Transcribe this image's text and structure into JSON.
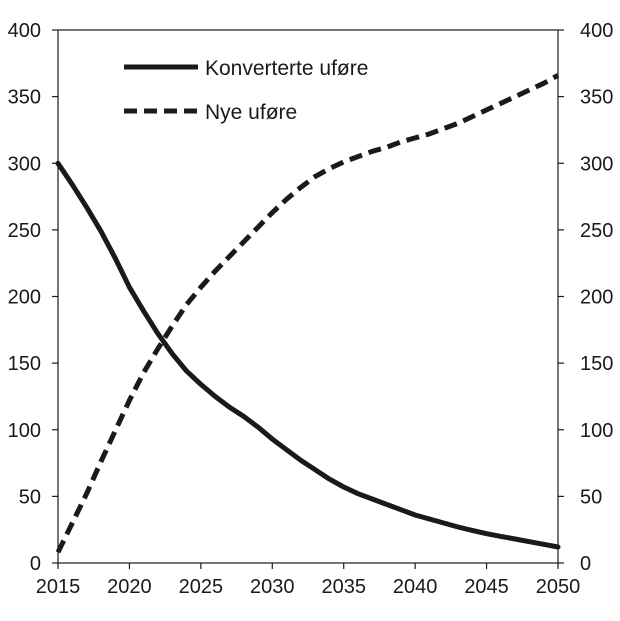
{
  "chart_data": {
    "type": "line",
    "title": "",
    "xlabel": "",
    "ylabel": "",
    "xlim": [
      2015,
      2050
    ],
    "ylim": [
      0,
      400
    ],
    "x_ticks": [
      "2015",
      "2020",
      "2025",
      "2030",
      "2035",
      "2040",
      "2045",
      "2050"
    ],
    "y_ticks_left": [
      "0",
      "50",
      "100",
      "150",
      "200",
      "250",
      "300",
      "350",
      "400"
    ],
    "y_ticks_right": [
      "0",
      "50",
      "100",
      "150",
      "200",
      "250",
      "300",
      "350",
      "400"
    ],
    "grid": false,
    "legend_position": "top-left",
    "series": [
      {
        "name": "Konverterte uføre",
        "style": "solid",
        "color": "#1a1a1a",
        "x": [
          2015,
          2016,
          2017,
          2018,
          2019,
          2020,
          2021,
          2022,
          2023,
          2024,
          2025,
          2026,
          2027,
          2028,
          2029,
          2030,
          2031,
          2032,
          2033,
          2034,
          2035,
          2036,
          2037,
          2038,
          2039,
          2040,
          2041,
          2042,
          2043,
          2044,
          2045,
          2046,
          2047,
          2048,
          2049,
          2050
        ],
        "y": [
          300,
          284,
          267,
          249,
          229,
          207,
          189,
          172,
          157,
          144,
          134,
          125,
          117,
          110,
          102,
          93,
          85,
          77,
          70,
          63,
          57,
          52,
          48,
          44,
          40,
          36,
          33,
          30,
          27,
          24.5,
          22,
          20,
          18,
          16,
          14,
          12
        ]
      },
      {
        "name": "Nye uføre",
        "style": "dashed",
        "color": "#1a1a1a",
        "x": [
          2015,
          2016,
          2017,
          2018,
          2019,
          2020,
          2021,
          2022,
          2023,
          2024,
          2025,
          2026,
          2027,
          2028,
          2029,
          2030,
          2031,
          2032,
          2033,
          2034,
          2035,
          2036,
          2037,
          2038,
          2039,
          2040,
          2041,
          2042,
          2043,
          2044,
          2045,
          2046,
          2047,
          2048,
          2049,
          2050
        ],
        "y": [
          8,
          30,
          52,
          76,
          99,
          122,
          143,
          161,
          178,
          194,
          207,
          219,
          230,
          241,
          252,
          263,
          273,
          282,
          290,
          296,
          301,
          305,
          309,
          312,
          316,
          319,
          322,
          326,
          330,
          335,
          340,
          345,
          350,
          355,
          360,
          366
        ]
      }
    ]
  }
}
